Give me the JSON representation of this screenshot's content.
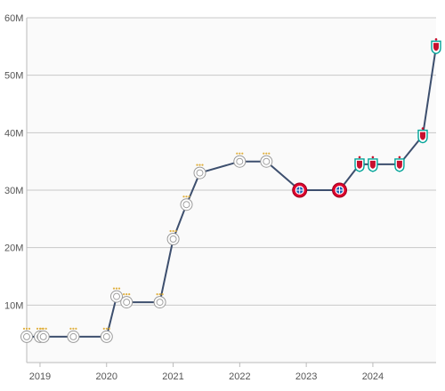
{
  "chart_data": {
    "type": "line",
    "title": "",
    "xlabel": "",
    "ylabel": "",
    "ylim": [
      0,
      60
    ],
    "xlim": [
      2018.8,
      2024.95
    ],
    "grid": true,
    "legend": "none",
    "y_ticks": [
      {
        "value": 10,
        "label": "10M"
      },
      {
        "value": 20,
        "label": "20M"
      },
      {
        "value": 30,
        "label": "30M"
      },
      {
        "value": 40,
        "label": "40M"
      },
      {
        "value": 50,
        "label": "50M"
      },
      {
        "value": 60,
        "label": "60M"
      }
    ],
    "x_ticks": [
      {
        "value": 2019,
        "label": "2019"
      },
      {
        "value": 2020,
        "label": "2020"
      },
      {
        "value": 2021,
        "label": "2021"
      },
      {
        "value": 2022,
        "label": "2022"
      },
      {
        "value": 2023,
        "label": "2023"
      },
      {
        "value": 2024,
        "label": "2024"
      }
    ],
    "series": [
      {
        "points": [
          {
            "x": 2018.8,
            "y": 4.5,
            "club": "ajax"
          },
          {
            "x": 2019.0,
            "y": 4.5,
            "club": "ajax"
          },
          {
            "x": 2019.05,
            "y": 4.5,
            "club": "ajax"
          },
          {
            "x": 2019.5,
            "y": 4.5,
            "club": "ajax"
          },
          {
            "x": 2020.0,
            "y": 4.5,
            "club": "ajax"
          },
          {
            "x": 2020.15,
            "y": 11.5,
            "club": "ajax"
          },
          {
            "x": 2020.3,
            "y": 10.5,
            "club": "ajax"
          },
          {
            "x": 2020.8,
            "y": 10.5,
            "club": "ajax"
          },
          {
            "x": 2021.0,
            "y": 21.5,
            "club": "ajax"
          },
          {
            "x": 2021.2,
            "y": 27.5,
            "club": "ajax"
          },
          {
            "x": 2021.4,
            "y": 33.0,
            "club": "ajax"
          },
          {
            "x": 2022.0,
            "y": 35.0,
            "club": "ajax"
          },
          {
            "x": 2022.4,
            "y": 35.0,
            "club": "ajax"
          },
          {
            "x": 2022.9,
            "y": 30.0,
            "club": "bayern"
          },
          {
            "x": 2023.5,
            "y": 30.0,
            "club": "bayern"
          },
          {
            "x": 2023.8,
            "y": 34.5,
            "club": "liverpool"
          },
          {
            "x": 2024.0,
            "y": 34.5,
            "club": "liverpool"
          },
          {
            "x": 2024.4,
            "y": 34.5,
            "club": "liverpool"
          },
          {
            "x": 2024.75,
            "y": 39.5,
            "club": "liverpool"
          },
          {
            "x": 2024.95,
            "y": 55.0,
            "club": "liverpool"
          }
        ]
      }
    ],
    "colors": {
      "line": "#3d4f6e",
      "grid": "#c8c8c8",
      "ajax": "#d2122e",
      "bayern": "#dc052d",
      "liverpool": "#c8102e",
      "liverpool_green": "#00a398"
    }
  }
}
